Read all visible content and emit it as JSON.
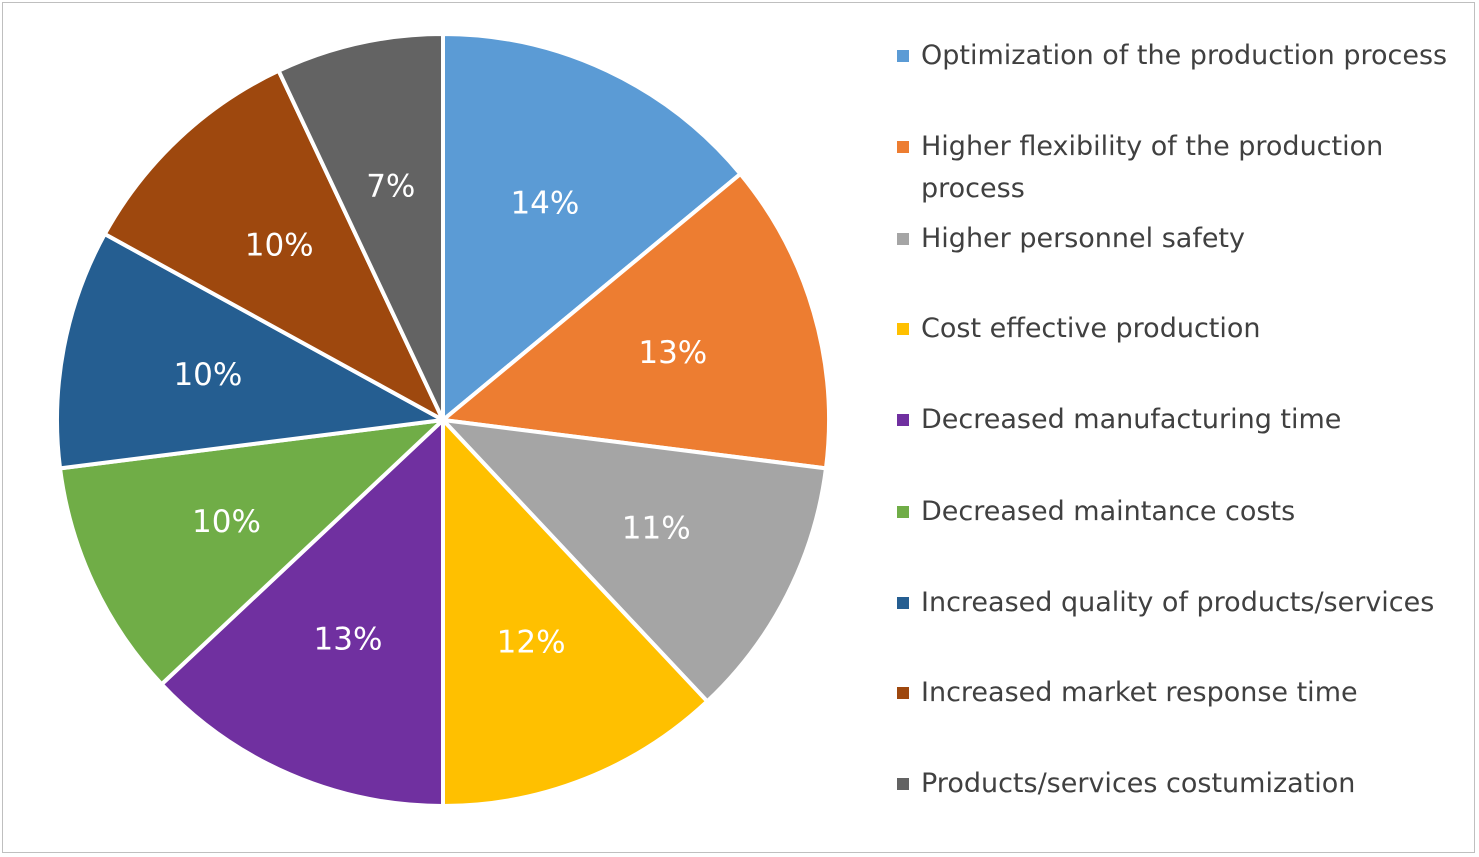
{
  "chart_data": {
    "type": "pie",
    "title": "",
    "legend_position": "right",
    "slices": [
      {
        "label": "Optimization of the production process",
        "value": 14,
        "display": "14%",
        "color": "#5B9BD5"
      },
      {
        "label": "Higher flexibility of the production process",
        "value": 13,
        "display": "13%",
        "color": "#ED7D31"
      },
      {
        "label": "Higher personnel safety",
        "value": 11,
        "display": "11%",
        "color": "#A5A5A5"
      },
      {
        "label": "Cost effective production",
        "value": 12,
        "display": "12%",
        "color": "#FFC000"
      },
      {
        "label": "Decreased manufacturing time",
        "value": 13,
        "display": "13%",
        "color": "#7030A0"
      },
      {
        "label": "Decreased maintance costs",
        "value": 10,
        "display": "10%",
        "color": "#70AD47"
      },
      {
        "label": "Increased quality of products/services",
        "value": 10,
        "display": "10%",
        "color": "#255E91"
      },
      {
        "label": "Increased market response time",
        "value": 10,
        "display": "10%",
        "color": "#9E480E"
      },
      {
        "label": "Products/services costumization",
        "value": 7,
        "display": "7%",
        "color": "#636363"
      }
    ]
  }
}
